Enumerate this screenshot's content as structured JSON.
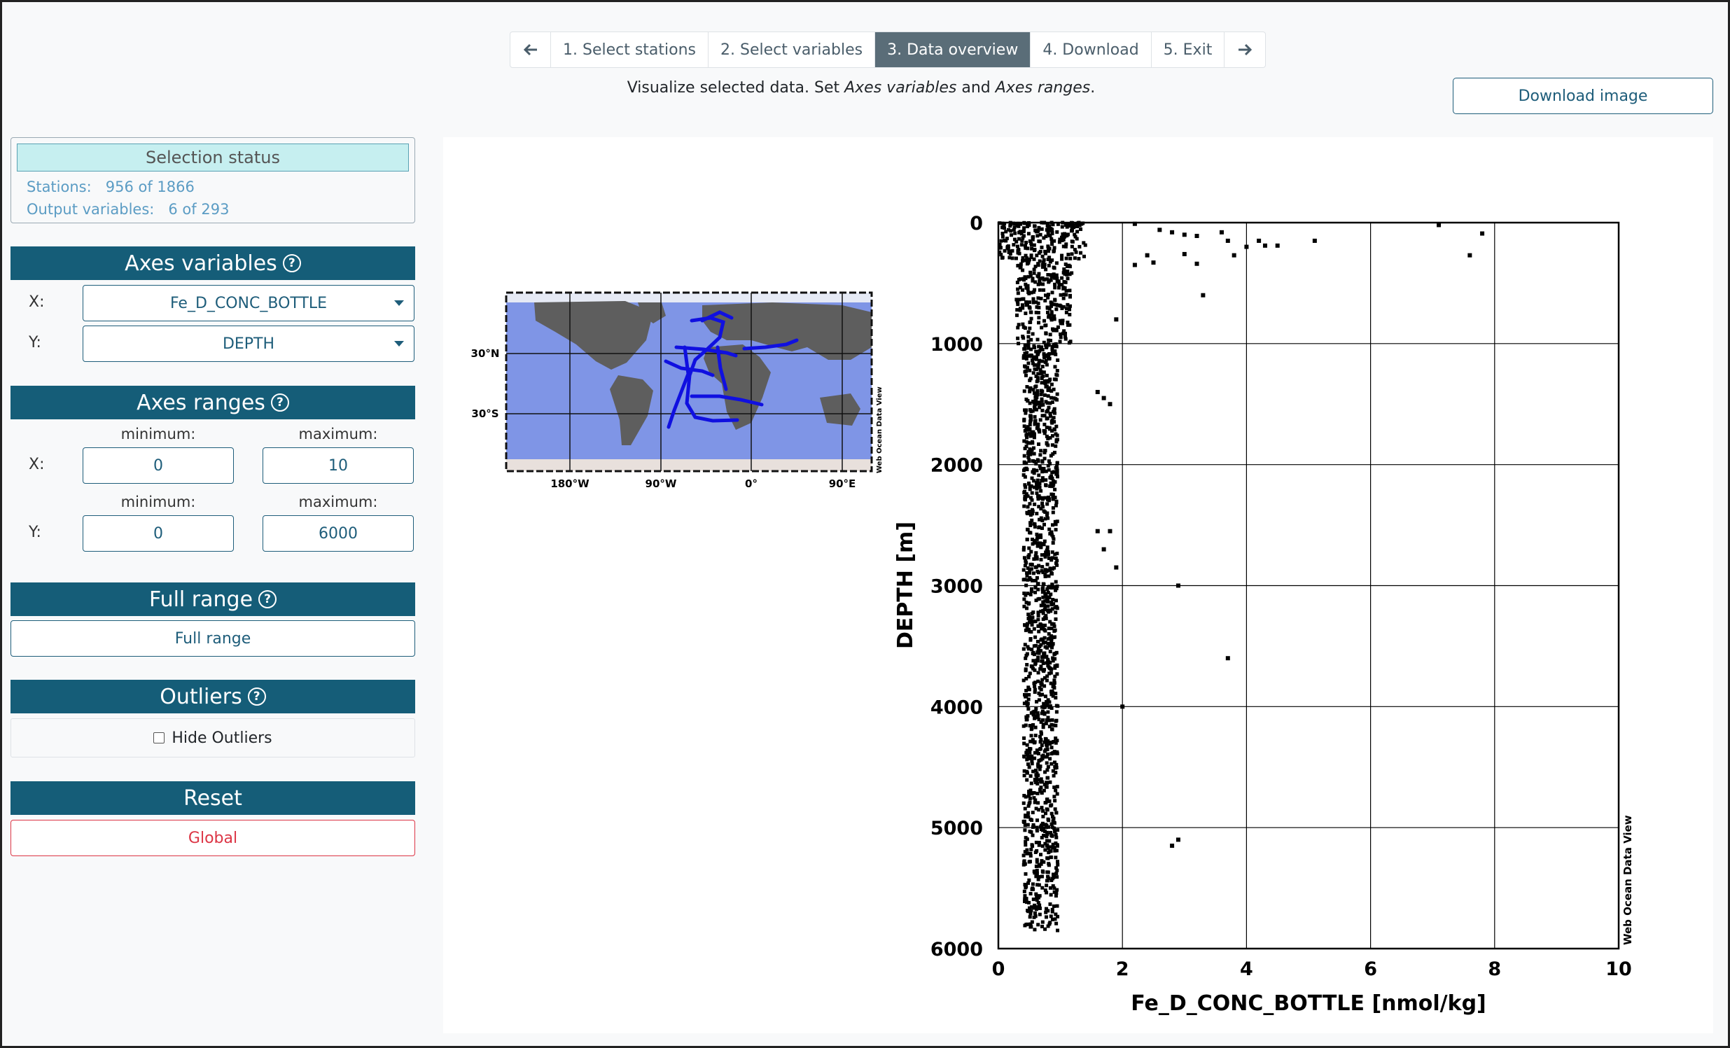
{
  "wizard": {
    "steps": [
      {
        "label": "1. Select stations",
        "active": false
      },
      {
        "label": "2. Select variables",
        "active": false
      },
      {
        "label": "3. Data overview",
        "active": true
      },
      {
        "label": "4. Download",
        "active": false
      },
      {
        "label": "5. Exit",
        "active": false
      }
    ],
    "prev_icon": "arrow-left-icon",
    "next_icon": "arrow-right-icon"
  },
  "subtitle": {
    "prefix": "Visualize selected data. Set ",
    "em1": "Axes variables",
    "mid": " and ",
    "em2": "Axes ranges",
    "suffix": "."
  },
  "download_image_label": "Download image",
  "selection_status": {
    "title": "Selection status",
    "stations_label": "Stations:",
    "stations_value": "956 of 1866",
    "output_label": "Output variables:",
    "output_value": "6 of 293"
  },
  "axes_variables": {
    "title": "Axes variables",
    "x_label": "X:",
    "x_value": "Fe_D_CONC_BOTTLE",
    "y_label": "Y:",
    "y_value": "DEPTH"
  },
  "axes_ranges": {
    "title": "Axes ranges",
    "min_caption": "minimum:",
    "max_caption": "maximum:",
    "x_label": "X:",
    "x_min": "0",
    "x_max": "10",
    "y_label": "Y:",
    "y_min": "0",
    "y_max": "6000"
  },
  "full_range": {
    "title": "Full range",
    "button_label": "Full range"
  },
  "outliers": {
    "title": "Outliers",
    "checkbox_label": "Hide Outliers",
    "checked": false
  },
  "reset": {
    "title": "Reset",
    "button_label": "Global"
  },
  "help_glyph": "?",
  "map": {
    "lat_labels": [
      "30°N",
      "30°S"
    ],
    "lon_labels": [
      "180°W",
      "90°W",
      "0°",
      "90°E"
    ],
    "watermark": "Web Ocean Data View"
  },
  "chart_data": {
    "type": "scatter",
    "xlabel": "Fe_D_CONC_BOTTLE [nmol/kg]",
    "ylabel": "DEPTH [m]",
    "xlim": [
      0,
      10
    ],
    "ylim": [
      6000,
      0
    ],
    "x_ticks": [
      "0",
      "2",
      "4",
      "6",
      "8",
      "10"
    ],
    "y_ticks": [
      "0",
      "1000",
      "2000",
      "3000",
      "4000",
      "5000",
      "6000"
    ],
    "grid": true,
    "watermark": "Web Ocean Data View",
    "point_color": "#000000",
    "outliers": [
      {
        "x": 2.2,
        "y": 10
      },
      {
        "x": 2.6,
        "y": 60
      },
      {
        "x": 2.8,
        "y": 80
      },
      {
        "x": 3.0,
        "y": 100
      },
      {
        "x": 3.2,
        "y": 110
      },
      {
        "x": 3.6,
        "y": 80
      },
      {
        "x": 3.7,
        "y": 150
      },
      {
        "x": 4.0,
        "y": 200
      },
      {
        "x": 4.2,
        "y": 150
      },
      {
        "x": 4.3,
        "y": 190
      },
      {
        "x": 4.5,
        "y": 190
      },
      {
        "x": 5.1,
        "y": 150
      },
      {
        "x": 7.1,
        "y": 20
      },
      {
        "x": 7.6,
        "y": 270
      },
      {
        "x": 7.8,
        "y": 90
      },
      {
        "x": 2.2,
        "y": 350
      },
      {
        "x": 2.5,
        "y": 330
      },
      {
        "x": 2.4,
        "y": 270
      },
      {
        "x": 3.2,
        "y": 340
      },
      {
        "x": 3.0,
        "y": 260
      },
      {
        "x": 3.3,
        "y": 600
      },
      {
        "x": 3.8,
        "y": 270
      },
      {
        "x": 2.9,
        "y": 3000
      },
      {
        "x": 3.7,
        "y": 3600
      },
      {
        "x": 2.0,
        "y": 4000
      },
      {
        "x": 2.9,
        "y": 5100
      },
      {
        "x": 2.8,
        "y": 5150
      },
      {
        "x": 1.9,
        "y": 2850
      },
      {
        "x": 1.8,
        "y": 2550
      },
      {
        "x": 1.7,
        "y": 2700
      },
      {
        "x": 1.6,
        "y": 2550
      },
      {
        "x": 1.8,
        "y": 1500
      },
      {
        "x": 1.7,
        "y": 1450
      },
      {
        "x": 1.6,
        "y": 1400
      },
      {
        "x": 1.9,
        "y": 800
      }
    ]
  }
}
